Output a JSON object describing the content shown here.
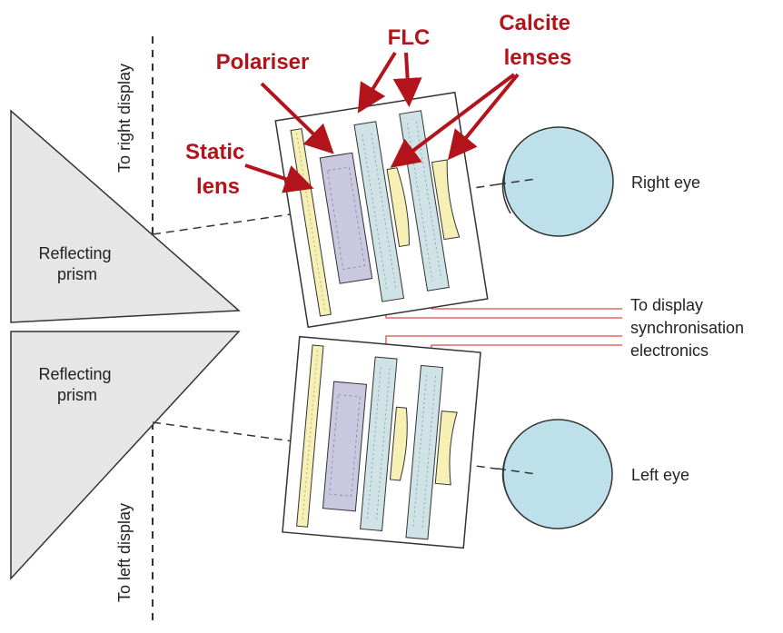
{
  "colors": {
    "annotation_red": "#b3141b",
    "prism_fill": "#e6e6e6",
    "eye_fill": "#bde0ea",
    "flc_fill": "#cfe2e6",
    "lens_fill": "#f6f0b4",
    "polariser_fill": "#c9c8e0",
    "signal_line": "#e0474c",
    "outline": "#333333"
  },
  "labels": {
    "to_right_display": "To right display",
    "to_left_display": "To left display",
    "reflecting_prism_top": [
      "Reflecting",
      "prism"
    ],
    "reflecting_prism_bottom": [
      "Reflecting",
      "prism"
    ],
    "right_eye": "Right eye",
    "left_eye": "Left eye",
    "sync_electronics": [
      "To display",
      "synchronisation",
      "electronics"
    ]
  },
  "annotations": {
    "polariser": "Polariser",
    "flc": "FLC",
    "calcite_lenses": [
      "Calcite",
      "lenses"
    ],
    "static_lens": [
      "Static",
      "lens"
    ]
  }
}
